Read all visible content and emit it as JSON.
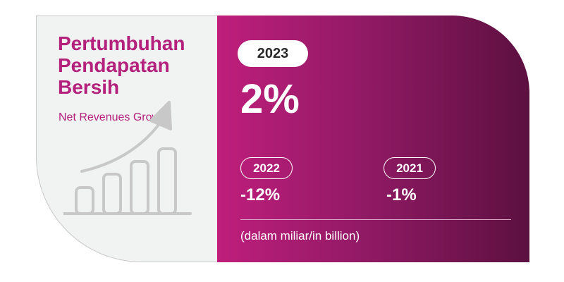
{
  "title": "Pertumbuhan Pendapatan Bersih",
  "subtitle": "Net Revenues Growth",
  "current": {
    "year": "2023",
    "value": "2%"
  },
  "previous": [
    {
      "year": "2022",
      "value": "-12%"
    },
    {
      "year": "2021",
      "value": "-1%"
    }
  ],
  "note": "(dalam miliar/in billion)",
  "icons": {
    "chart": "growth-chart-icon"
  },
  "colors": {
    "accent": "#b3217d",
    "gradient_start": "#bf1e7c",
    "gradient_end": "#5c1040",
    "panel": "#f1f2f2"
  }
}
